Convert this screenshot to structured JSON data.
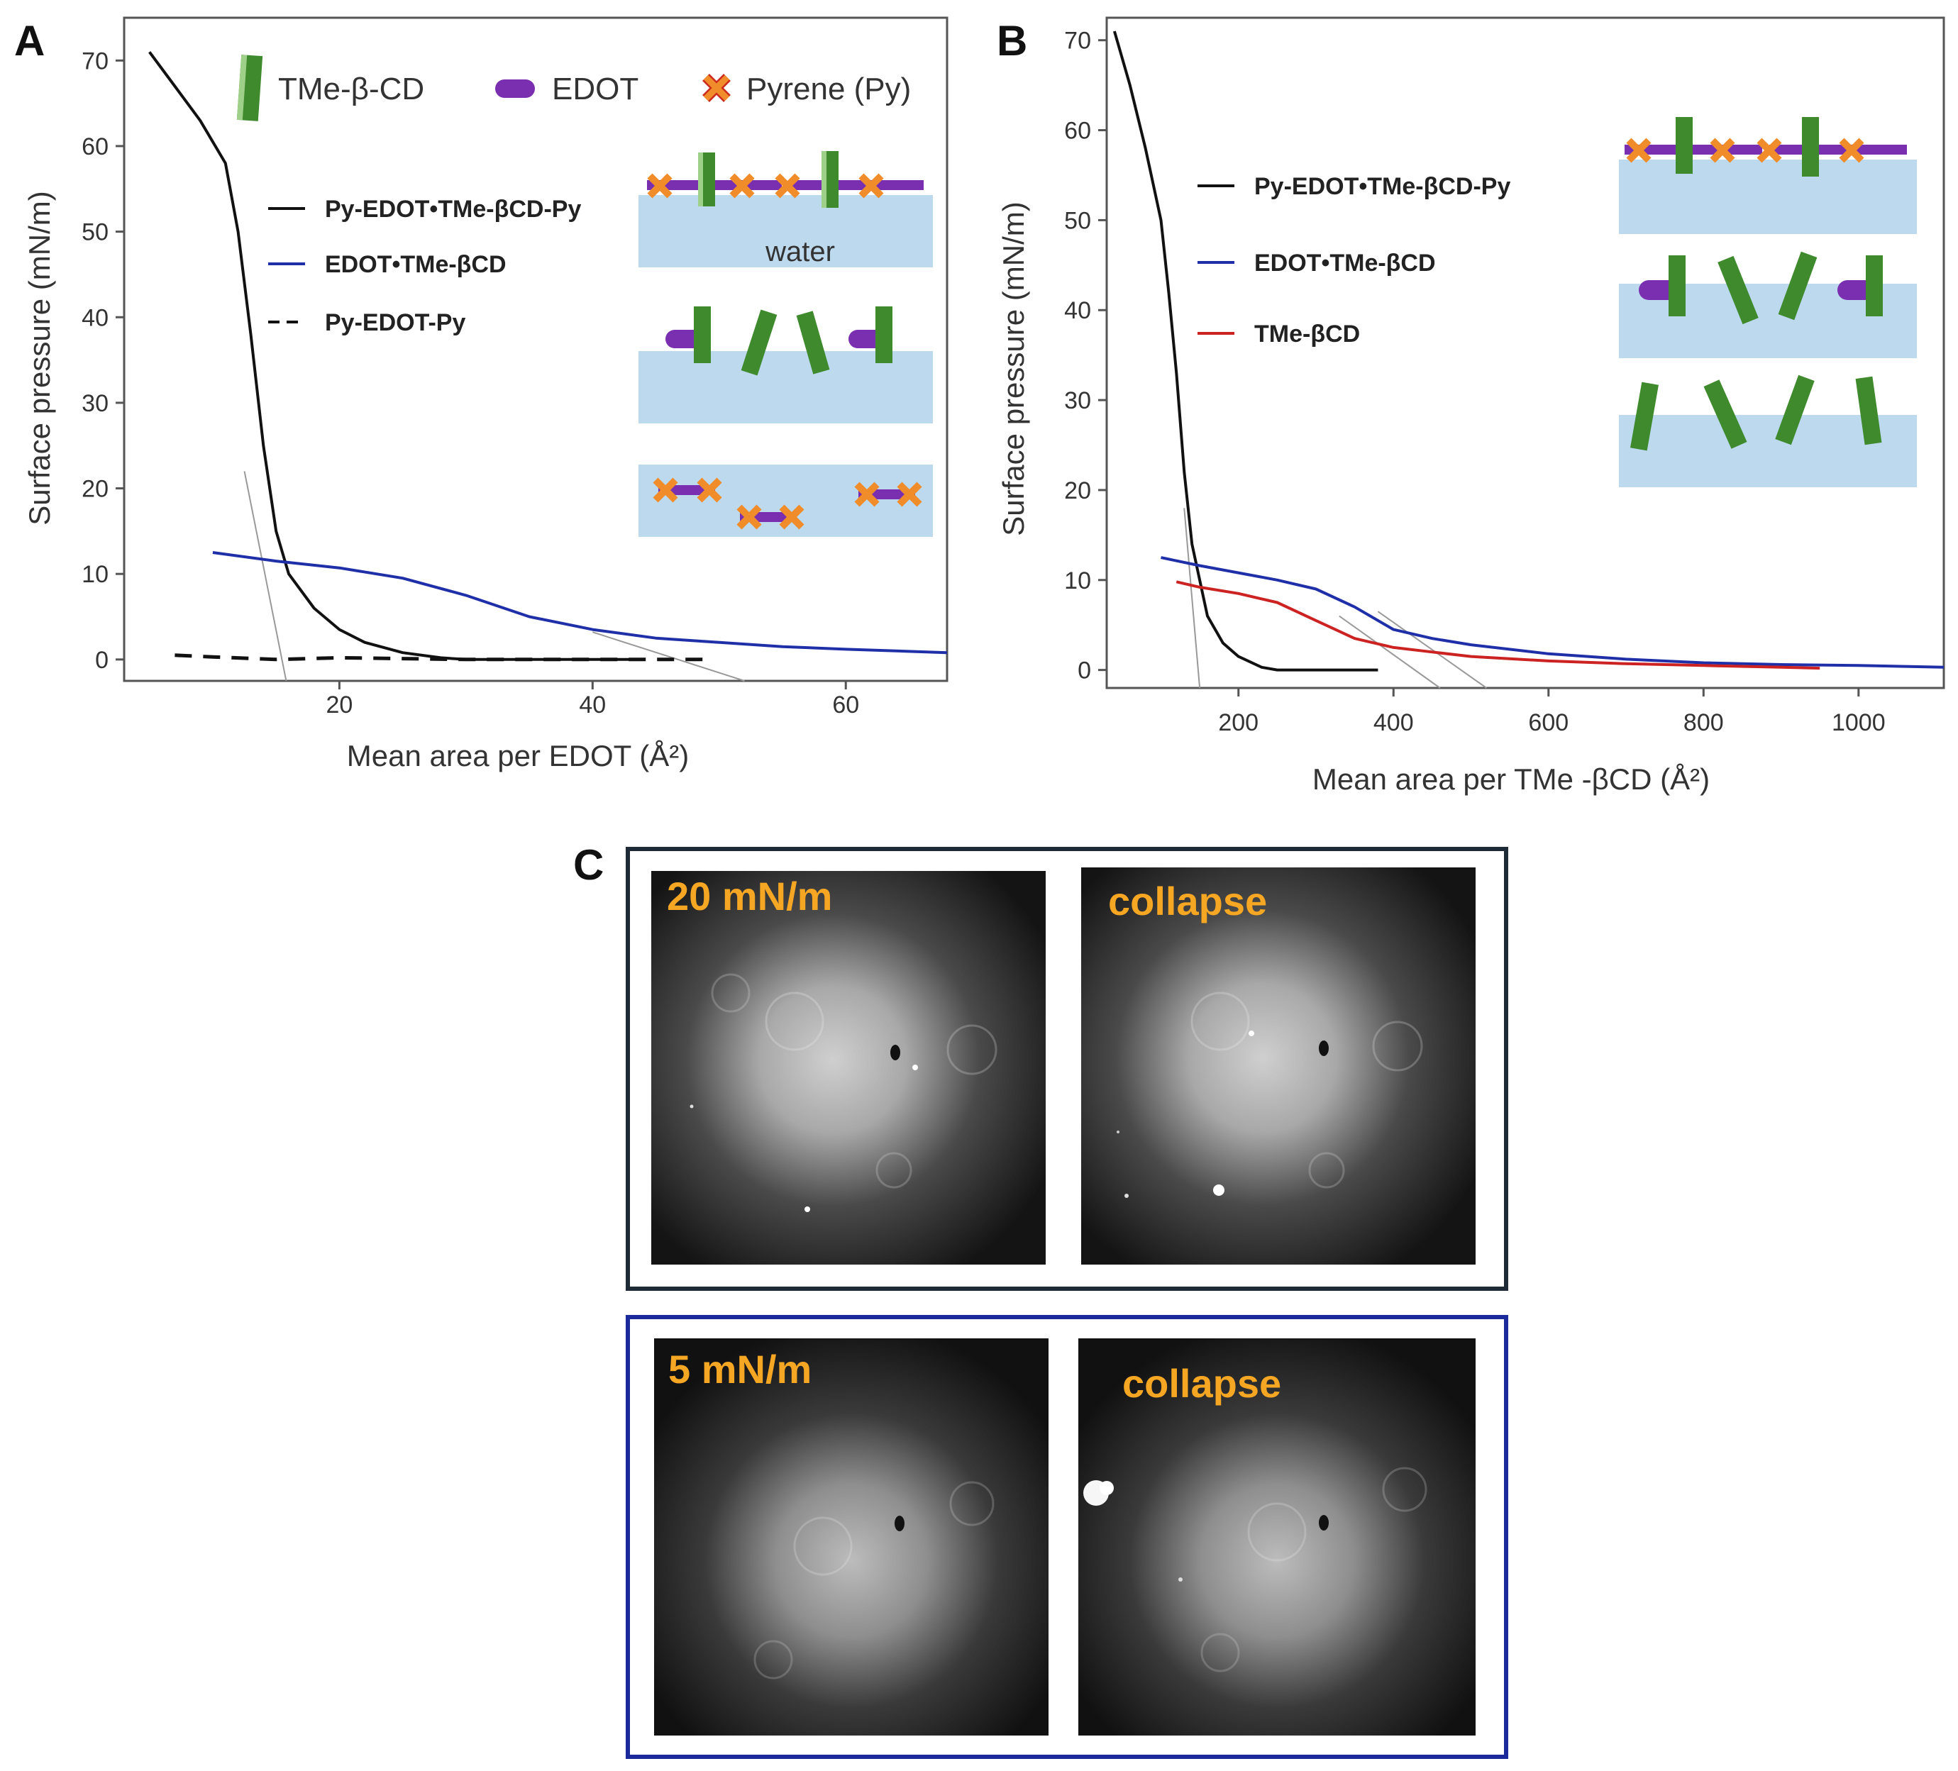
{
  "panels": {
    "a": "A",
    "b": "B",
    "c": "C"
  },
  "key": {
    "cd": "TMe-β-CD",
    "edot": "EDOT",
    "py": "Pyrene (Py)",
    "water": "water"
  },
  "colors": {
    "black": "#111111",
    "blue": "#1f2fa8",
    "red": "#cc2222",
    "cd_green": "#3e8a2c",
    "edot_purple": "#7a2fb0",
    "py_orange": "#f08c2a",
    "water_blue": "#bcd9ee",
    "frame_black": "#1e2a36",
    "frame_blue": "#1a2a9a",
    "label_orange": "#f5a623"
  },
  "micrographs": {
    "top_left": "20 mN/m",
    "top_right": "collapse",
    "bottom_left": "5 mN/m",
    "bottom_right": "collapse"
  },
  "chart_data": [
    {
      "type": "line",
      "panel": "A",
      "xlabel": "Mean area per EDOT (Å²)",
      "ylabel": "Surface pressure (mN/m)",
      "xlim": [
        3,
        68
      ],
      "ylim": [
        -2.5,
        75
      ],
      "xticks": [
        20,
        40,
        60
      ],
      "yticks": [
        0,
        10,
        20,
        30,
        40,
        50,
        60,
        70
      ],
      "legend_position": "upper-middle",
      "series": [
        {
          "name": "Py-EDOT•TMe-βCD-Py",
          "color": "#111111",
          "dash": "solid",
          "x": [
            5,
            7,
            9,
            11,
            12,
            13,
            14,
            15,
            16,
            18,
            20,
            22,
            25,
            28,
            30,
            35,
            43
          ],
          "y": [
            71,
            67,
            63,
            58,
            50,
            38,
            25,
            15,
            10,
            6,
            3.5,
            2,
            0.8,
            0.2,
            0,
            0,
            0
          ]
        },
        {
          "name": "EDOT•TMe-βCD",
          "color": "#1f2fa8",
          "dash": "solid",
          "x": [
            10,
            15,
            20,
            25,
            30,
            35,
            40,
            45,
            50,
            55,
            60,
            68
          ],
          "y": [
            12.5,
            11.5,
            10.7,
            9.5,
            7.5,
            5,
            3.5,
            2.5,
            2,
            1.5,
            1.2,
            0.8
          ]
        },
        {
          "name": "Py-EDOT-Py",
          "color": "#111111",
          "dash": "dashed",
          "x": [
            7,
            10,
            15,
            20,
            25,
            30,
            40,
            49
          ],
          "y": [
            0.5,
            0.3,
            0,
            0.2,
            0.1,
            0,
            0,
            0
          ]
        }
      ],
      "guides": [
        {
          "x": [
            12.5,
            15.8
          ],
          "y": [
            22,
            -2.5
          ]
        },
        {
          "x": [
            40,
            52
          ],
          "y": [
            3.2,
            -2.5
          ]
        }
      ]
    },
    {
      "type": "line",
      "panel": "B",
      "xlabel": "Mean area per TMe -βCD  (Å²)",
      "ylabel": "Surface pressure (mN/m)",
      "xlim": [
        30,
        1110
      ],
      "ylim": [
        -2,
        72.5
      ],
      "xticks": [
        200,
        400,
        600,
        800,
        1000
      ],
      "yticks": [
        0,
        10,
        20,
        30,
        40,
        50,
        60,
        70
      ],
      "legend_position": "upper-middle",
      "series": [
        {
          "name": "Py-EDOT•TMe-βCD-Py",
          "color": "#111111",
          "x": [
            40,
            60,
            80,
            100,
            110,
            120,
            130,
            140,
            150,
            160,
            180,
            200,
            230,
            250,
            300,
            380
          ],
          "y": [
            71,
            65,
            58,
            50,
            42,
            33,
            22,
            14,
            10,
            6,
            3,
            1.5,
            0.3,
            0,
            0,
            0
          ]
        },
        {
          "name": "EDOT•TMe-βCD",
          "color": "#1f2fa8",
          "x": [
            100,
            150,
            200,
            250,
            300,
            350,
            400,
            450,
            500,
            600,
            700,
            800,
            900,
            1000,
            1110
          ],
          "y": [
            12.5,
            11.6,
            10.8,
            10,
            9,
            7,
            4.5,
            3.5,
            2.8,
            1.8,
            1.2,
            0.8,
            0.6,
            0.5,
            0.3
          ]
        },
        {
          "name": "TMe-βCD",
          "color": "#cc2222",
          "x": [
            120,
            150,
            200,
            250,
            300,
            350,
            400,
            450,
            500,
            600,
            700,
            800,
            900,
            950
          ],
          "y": [
            9.8,
            9.2,
            8.5,
            7.5,
            5.5,
            3.5,
            2.5,
            2,
            1.5,
            1,
            0.7,
            0.5,
            0.3,
            0.2
          ]
        }
      ],
      "guides": [
        {
          "x": [
            130,
            150
          ],
          "y": [
            18,
            -2
          ]
        },
        {
          "x": [
            330,
            460
          ],
          "y": [
            6,
            -2
          ]
        },
        {
          "x": [
            380,
            520
          ],
          "y": [
            6.5,
            -2
          ]
        }
      ]
    }
  ]
}
